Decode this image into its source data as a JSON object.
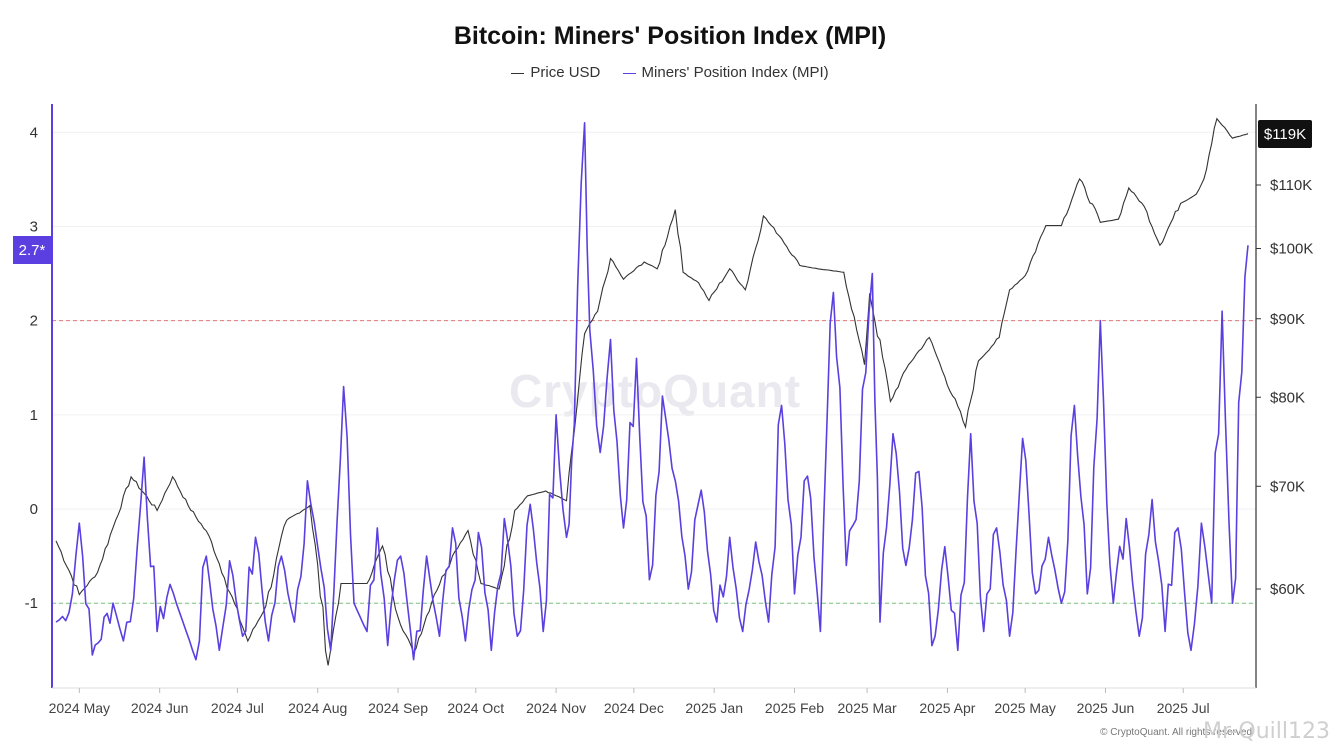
{
  "header": {
    "title": "Bitcoin: Miners' Position Index (MPI)"
  },
  "legend": {
    "price_label": "Price USD",
    "mpi_label": "Miners' Position Index (MPI)"
  },
  "badges": {
    "price_current": "$119K",
    "mpi_current": "2.7*"
  },
  "watermark": "CryptoQuant",
  "credit": "© CryptoQuant. All rights reserved",
  "signature": "Mr-Quill123",
  "colors": {
    "price": "#333333",
    "mpi": "#5b3fe0",
    "upper_threshold": "#e07b7b",
    "lower_threshold": "#7cc47c",
    "badge_dark": "#111111",
    "badge_purple": "#5b3fe0"
  },
  "chart_data": {
    "type": "line",
    "title": "Bitcoin: Miners' Position Index (MPI)",
    "x_range": [
      "2024-04-22",
      "2025-07-26"
    ],
    "x_tick_labels": [
      "2024 May",
      "2024 Jun",
      "2024 Jul",
      "2024 Aug",
      "2024 Sep",
      "2024 Oct",
      "2024 Nov",
      "2024 Dec",
      "2025 Jan",
      "2025 Feb",
      "2025 Mar",
      "2025 Apr",
      "2025 May",
      "2025 Jun",
      "2025 Jul"
    ],
    "y_left": {
      "ylim": [
        -1.9,
        4.3
      ],
      "ticks": [
        -1,
        0,
        1,
        2,
        3,
        4
      ]
    },
    "y_right": {
      "ticks": [
        "$60K",
        "$70K",
        "$80K",
        "$90K",
        "$100K",
        "$110K"
      ],
      "tick_values": [
        60000,
        70000,
        80000,
        90000,
        100000,
        110000
      ]
    },
    "thresholds": [
      {
        "axis": "left",
        "value": 2
      },
      {
        "axis": "left",
        "value": -1
      }
    ],
    "grid": "horizontal",
    "legend_position": "top-center",
    "series": [
      {
        "name": "Price USD",
        "axis": "right",
        "anchors": [
          [
            "2024-04-22",
            64500
          ],
          [
            "2024-05-01",
            59500
          ],
          [
            "2024-05-08",
            61500
          ],
          [
            "2024-05-15",
            66500
          ],
          [
            "2024-05-21",
            71000
          ],
          [
            "2024-05-31",
            67500
          ],
          [
            "2024-06-06",
            71000
          ],
          [
            "2024-06-12",
            68000
          ],
          [
            "2024-06-20",
            65000
          ],
          [
            "2024-06-26",
            61000
          ],
          [
            "2024-07-05",
            55500
          ],
          [
            "2024-07-12",
            58500
          ],
          [
            "2024-07-20",
            66500
          ],
          [
            "2024-07-29",
            68000
          ],
          [
            "2024-08-05",
            53500
          ],
          [
            "2024-08-10",
            60500
          ],
          [
            "2024-08-20",
            60500
          ],
          [
            "2024-08-26",
            64000
          ],
          [
            "2024-09-01",
            57500
          ],
          [
            "2024-09-07",
            54500
          ],
          [
            "2024-09-15",
            59500
          ],
          [
            "2024-09-23",
            63500
          ],
          [
            "2024-09-28",
            65500
          ],
          [
            "2024-10-03",
            60500
          ],
          [
            "2024-10-10",
            60000
          ],
          [
            "2024-10-16",
            67500
          ],
          [
            "2024-10-21",
            69000
          ],
          [
            "2024-10-28",
            69500
          ],
          [
            "2024-11-05",
            68500
          ],
          [
            "2024-11-08",
            76000
          ],
          [
            "2024-11-12",
            88000
          ],
          [
            "2024-11-17",
            91000
          ],
          [
            "2024-11-22",
            98500
          ],
          [
            "2024-11-27",
            95500
          ],
          [
            "2024-12-05",
            98000
          ],
          [
            "2024-12-10",
            97000
          ],
          [
            "2024-12-17",
            106000
          ],
          [
            "2024-12-20",
            96500
          ],
          [
            "2024-12-26",
            95000
          ],
          [
            "2024-12-30",
            92500
          ],
          [
            "2025-01-07",
            97000
          ],
          [
            "2025-01-13",
            94000
          ],
          [
            "2025-01-20",
            105000
          ],
          [
            "2025-01-27",
            101500
          ],
          [
            "2025-02-03",
            97500
          ],
          [
            "2025-02-10",
            97000
          ],
          [
            "2025-02-20",
            96500
          ],
          [
            "2025-02-25",
            88500
          ],
          [
            "2025-02-28",
            84000
          ],
          [
            "2025-03-02",
            93500
          ],
          [
            "2025-03-10",
            79500
          ],
          [
            "2025-03-17",
            84000
          ],
          [
            "2025-03-25",
            87500
          ],
          [
            "2025-03-31",
            82500
          ],
          [
            "2025-04-08",
            76500
          ],
          [
            "2025-04-13",
            84500
          ],
          [
            "2025-04-21",
            87500
          ],
          [
            "2025-04-25",
            94000
          ],
          [
            "2025-05-01",
            96000
          ],
          [
            "2025-05-09",
            103500
          ],
          [
            "2025-05-15",
            103500
          ],
          [
            "2025-05-22",
            111000
          ],
          [
            "2025-05-30",
            104000
          ],
          [
            "2025-06-06",
            104500
          ],
          [
            "2025-06-10",
            109500
          ],
          [
            "2025-06-16",
            106500
          ],
          [
            "2025-06-22",
            100500
          ],
          [
            "2025-06-30",
            107000
          ],
          [
            "2025-07-06",
            108500
          ],
          [
            "2025-07-09",
            111000
          ],
          [
            "2025-07-14",
            121500
          ],
          [
            "2025-07-20",
            118000
          ],
          [
            "2025-07-26",
            118800
          ]
        ]
      },
      {
        "name": "Miners' Position Index (MPI)",
        "axis": "left",
        "anchors": [
          [
            "2024-04-22",
            -1.2
          ],
          [
            "2024-04-27",
            -1.1
          ],
          [
            "2024-05-01",
            -0.15
          ],
          [
            "2024-05-06",
            -1.55
          ],
          [
            "2024-05-14",
            -1.0
          ],
          [
            "2024-05-18",
            -1.4
          ],
          [
            "2024-05-22",
            -0.95
          ],
          [
            "2024-05-26",
            0.55
          ],
          [
            "2024-05-31",
            -1.3
          ],
          [
            "2024-06-05",
            -0.8
          ],
          [
            "2024-06-10",
            -1.2
          ],
          [
            "2024-06-15",
            -1.6
          ],
          [
            "2024-06-19",
            -0.5
          ],
          [
            "2024-06-24",
            -1.5
          ],
          [
            "2024-06-28",
            -0.55
          ],
          [
            "2024-07-03",
            -1.35
          ],
          [
            "2024-07-08",
            -0.3
          ],
          [
            "2024-07-13",
            -1.4
          ],
          [
            "2024-07-18",
            -0.5
          ],
          [
            "2024-07-23",
            -1.2
          ],
          [
            "2024-07-28",
            0.3
          ],
          [
            "2024-08-01",
            -0.4
          ],
          [
            "2024-08-06",
            -1.5
          ],
          [
            "2024-08-11",
            1.3
          ],
          [
            "2024-08-15",
            -1.0
          ],
          [
            "2024-08-20",
            -1.3
          ],
          [
            "2024-08-24",
            -0.2
          ],
          [
            "2024-08-28",
            -1.45
          ],
          [
            "2024-09-02",
            -0.5
          ],
          [
            "2024-09-07",
            -1.6
          ],
          [
            "2024-09-12",
            -0.5
          ],
          [
            "2024-09-17",
            -1.35
          ],
          [
            "2024-09-22",
            -0.2
          ],
          [
            "2024-09-27",
            -1.4
          ],
          [
            "2024-10-02",
            -0.25
          ],
          [
            "2024-10-07",
            -1.5
          ],
          [
            "2024-10-12",
            -0.1
          ],
          [
            "2024-10-17",
            -1.35
          ],
          [
            "2024-10-22",
            0.05
          ],
          [
            "2024-10-27",
            -1.3
          ],
          [
            "2024-11-01",
            1.0
          ],
          [
            "2024-11-05",
            -0.3
          ],
          [
            "2024-11-08",
            0.9
          ],
          [
            "2024-11-12",
            4.1
          ],
          [
            "2024-11-14",
            1.9
          ],
          [
            "2024-11-18",
            0.6
          ],
          [
            "2024-11-22",
            1.8
          ],
          [
            "2024-11-27",
            -0.2
          ],
          [
            "2024-12-02",
            1.6
          ],
          [
            "2024-12-07",
            -0.75
          ],
          [
            "2024-12-12",
            1.2
          ],
          [
            "2024-12-17",
            0.3
          ],
          [
            "2024-12-22",
            -0.85
          ],
          [
            "2024-12-27",
            0.2
          ],
          [
            "2025-01-02",
            -1.2
          ],
          [
            "2025-01-07",
            -0.3
          ],
          [
            "2025-01-12",
            -1.3
          ],
          [
            "2025-01-17",
            -0.35
          ],
          [
            "2025-01-22",
            -1.2
          ],
          [
            "2025-01-27",
            1.1
          ],
          [
            "2025-02-01",
            -0.9
          ],
          [
            "2025-02-06",
            0.35
          ],
          [
            "2025-02-11",
            -1.3
          ],
          [
            "2025-02-16",
            2.3
          ],
          [
            "2025-02-21",
            -0.6
          ],
          [
            "2025-02-26",
            0.3
          ],
          [
            "2025-03-03",
            2.5
          ],
          [
            "2025-03-06",
            -1.2
          ],
          [
            "2025-03-11",
            0.8
          ],
          [
            "2025-03-16",
            -0.6
          ],
          [
            "2025-03-21",
            0.4
          ],
          [
            "2025-03-26",
            -1.45
          ],
          [
            "2025-03-31",
            -0.4
          ],
          [
            "2025-04-05",
            -1.5
          ],
          [
            "2025-04-10",
            0.8
          ],
          [
            "2025-04-15",
            -1.3
          ],
          [
            "2025-04-20",
            -0.2
          ],
          [
            "2025-04-25",
            -1.35
          ],
          [
            "2025-04-30",
            0.75
          ],
          [
            "2025-05-05",
            -0.9
          ],
          [
            "2025-05-10",
            -0.3
          ],
          [
            "2025-05-15",
            -1.0
          ],
          [
            "2025-05-20",
            1.1
          ],
          [
            "2025-05-25",
            -0.9
          ],
          [
            "2025-05-30",
            2.0
          ],
          [
            "2025-06-04",
            -1.0
          ],
          [
            "2025-06-09",
            -0.1
          ],
          [
            "2025-06-14",
            -1.35
          ],
          [
            "2025-06-19",
            0.1
          ],
          [
            "2025-06-24",
            -1.3
          ],
          [
            "2025-06-29",
            -0.2
          ],
          [
            "2025-07-04",
            -1.5
          ],
          [
            "2025-07-08",
            -0.15
          ],
          [
            "2025-07-12",
            -1.0
          ],
          [
            "2025-07-16",
            2.1
          ],
          [
            "2025-07-20",
            -1.0
          ],
          [
            "2025-07-26",
            2.8
          ]
        ]
      }
    ]
  }
}
